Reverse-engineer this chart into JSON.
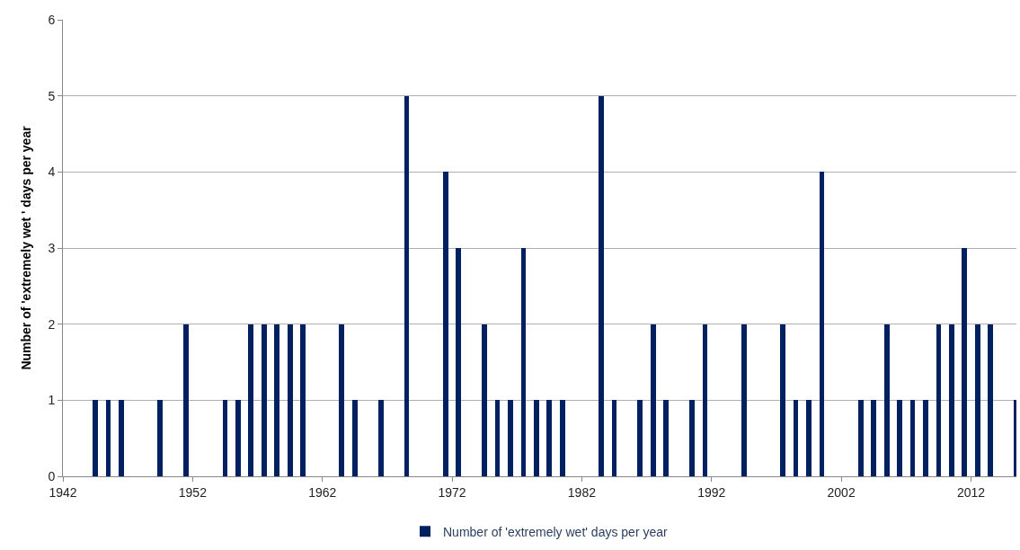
{
  "chart_data": {
    "type": "bar",
    "ylabel": "Number of 'extremely wet ' days per year",
    "x": [
      1944.5,
      1945.5,
      1946.5,
      1949.5,
      1951.5,
      1954.5,
      1955.5,
      1956.5,
      1957.5,
      1958.5,
      1959.5,
      1960.5,
      1963.5,
      1964.5,
      1966.5,
      1968.5,
      1971.5,
      1972.5,
      1974.5,
      1975.5,
      1976.5,
      1977.5,
      1978.5,
      1979.5,
      1980.5,
      1983.5,
      1984.5,
      1986.5,
      1987.5,
      1988.5,
      1990.5,
      1991.5,
      1994.5,
      1997.5,
      1998.5,
      1999.5,
      2000.5,
      2003.5,
      2004.5,
      2005.5,
      2006.5,
      2007.5,
      2008.5,
      2009.5,
      2010.5,
      2011.5,
      2012.5,
      2013.5,
      2015.5
    ],
    "series": [
      {
        "name": "Number of 'extremely wet' days per year",
        "color": "#002060",
        "values": [
          1,
          1,
          1,
          1,
          2,
          1,
          1,
          2,
          2,
          2,
          2,
          2,
          2,
          1,
          1,
          5,
          4,
          3,
          2,
          1,
          1,
          3,
          1,
          1,
          1,
          5,
          1,
          1,
          2,
          1,
          1,
          2,
          2,
          2,
          1,
          1,
          4,
          1,
          1,
          2,
          1,
          1,
          1,
          2,
          2,
          3,
          2,
          2,
          1
        ]
      }
    ],
    "xlim": [
      1942,
      2015.5
    ],
    "xticks": [
      1942,
      1952,
      1962,
      1972,
      1982,
      1992,
      2002,
      2012
    ],
    "ylim": [
      0,
      6
    ],
    "yticks": [
      0,
      1,
      2,
      3,
      4,
      5,
      6
    ],
    "grid": "y",
    "legend": "bottom"
  }
}
